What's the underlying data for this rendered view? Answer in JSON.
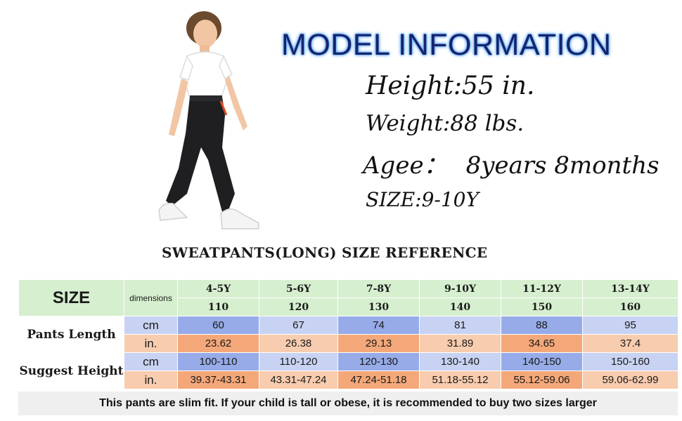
{
  "model_info": {
    "title": "MODEL INFORMATION",
    "height": "Height:55 in.",
    "weight": "Weight:88 lbs.",
    "age_label": "Agee：",
    "age_value": "8years 8months",
    "size": "SIZE:9-10Y"
  },
  "size_table": {
    "title": "SWEATPANTS(LONG) SIZE REFERENCE",
    "size_label": "SIZE",
    "dimensions_label": "dimensions",
    "columns": [
      {
        "age": "4-5Y",
        "size": "110"
      },
      {
        "age": "5-6Y",
        "size": "120"
      },
      {
        "age": "7-8Y",
        "size": "130"
      },
      {
        "age": "9-10Y",
        "size": "140"
      },
      {
        "age": "11-12Y",
        "size": "150"
      },
      {
        "age": "13-14Y",
        "size": "160"
      }
    ],
    "rows": [
      {
        "label": "Pants Length",
        "cm": [
          "60",
          "67",
          "74",
          "81",
          "88",
          "95"
        ],
        "in": [
          "23.62",
          "26.38",
          "29.13",
          "31.89",
          "34.65",
          "37.4"
        ]
      },
      {
        "label": "Suggest Height",
        "cm": [
          "100-110",
          "110-120",
          "120-130",
          "130-140",
          "140-150",
          "150-160"
        ],
        "in": [
          "39.37-43.31",
          "43.31-47.24",
          "47.24-51.18",
          "51.18-55.12",
          "55.12-59.06",
          "59.06-62.99"
        ]
      }
    ],
    "unit_cm": "cm",
    "unit_in": "in."
  },
  "footer_note": "This pants are slim fit. If your child is tall or obese, it is recommended to buy two sizes larger"
}
